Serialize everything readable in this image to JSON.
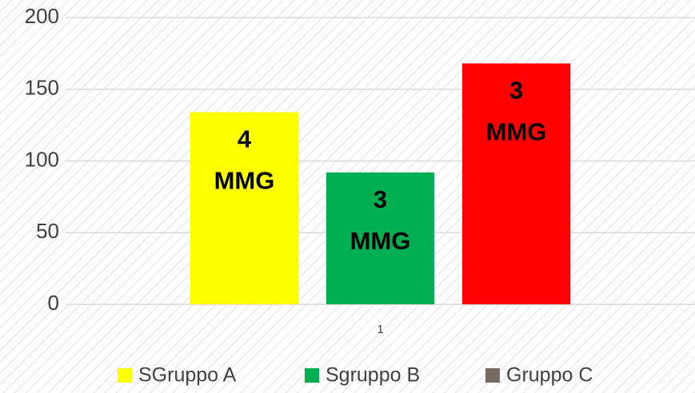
{
  "chart_data": {
    "type": "bar",
    "categories": [
      "1"
    ],
    "series": [
      {
        "name": "SGruppo A",
        "color": "#ffff00",
        "values": [
          134
        ],
        "annotation": [
          "4",
          "MMG"
        ]
      },
      {
        "name": "Sgruppo B",
        "color": "#00b050",
        "values": [
          92
        ],
        "annotation": [
          "3",
          "MMG"
        ]
      },
      {
        "name": "Gruppo C",
        "color": "#ff0000",
        "legend_color": "#766a62",
        "values": [
          168
        ],
        "annotation": [
          "3",
          "MMG"
        ]
      }
    ],
    "ylim": [
      0,
      200
    ],
    "yticks": [
      0,
      50,
      100,
      150,
      200
    ],
    "grid": true,
    "legend": "bottom"
  }
}
